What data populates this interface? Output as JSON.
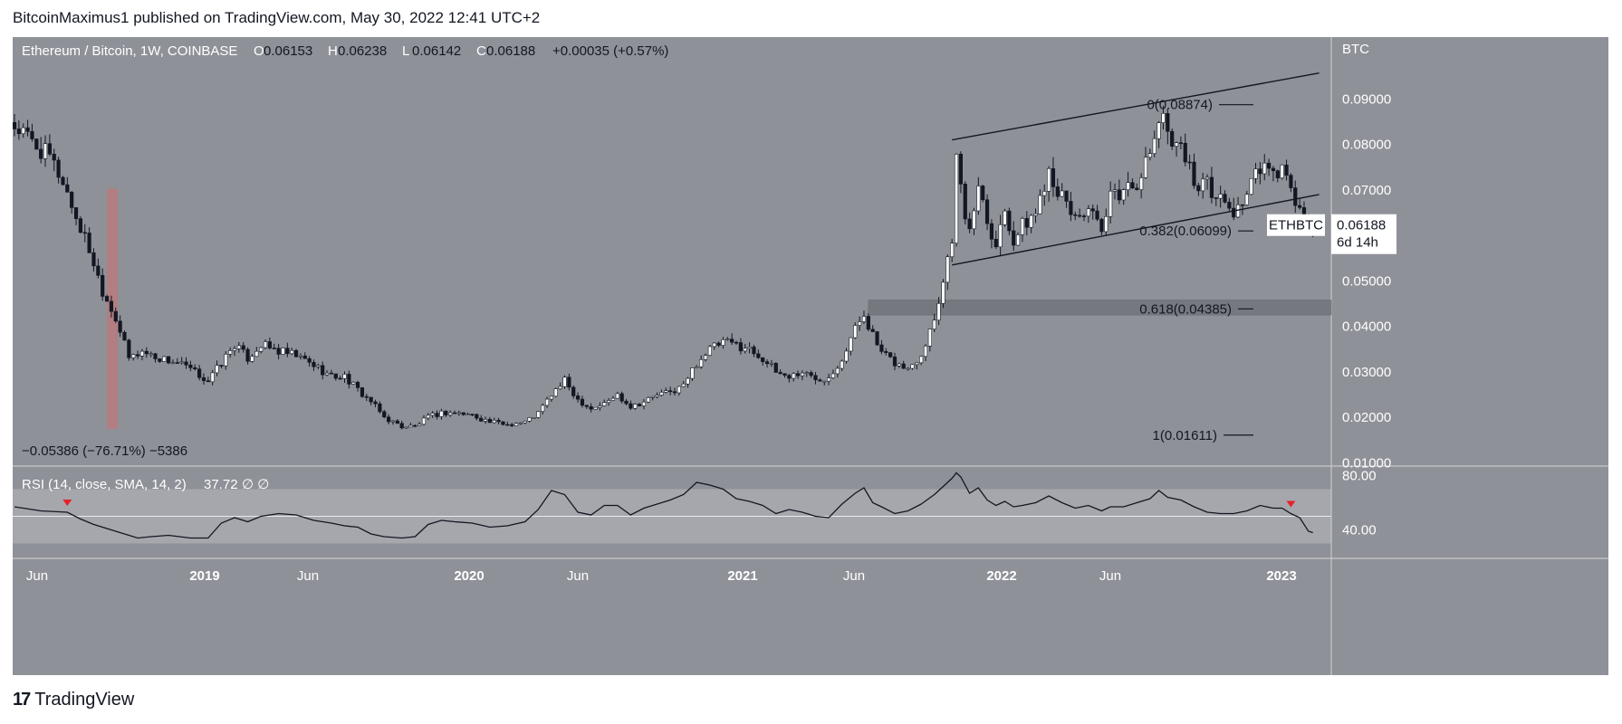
{
  "header": {
    "text": "BitcoinMaximus1 published on TradingView.com, May 30, 2022 12:41 UTC+2"
  },
  "footer": {
    "brand": "TradingView",
    "logo_glyph": "17"
  },
  "colors": {
    "background": "#8f9198",
    "bull": "#ffffff",
    "bear": "#131722",
    "border": "#c8c9cc",
    "rsi_band": "#a6a7ad",
    "zone": "#6e7077",
    "red_bar": "#b97a7d",
    "marker": "#e5202a"
  },
  "chart_data": {
    "type": "candlestick",
    "title": "Ethereum / Bitcoin, 1W, COINBASE",
    "ohlc": {
      "o_label": "O",
      "o": "0.06153",
      "h_label": "H",
      "h": "0.06238",
      "l_label": "L",
      "l": "0.06142",
      "c_label": "C",
      "c": "0.06188",
      "change": "+0.00035 (+0.57%)"
    },
    "y_axis": {
      "unit": "BTC",
      "ticks": [
        "0.09000",
        "0.08000",
        "0.07000",
        "0.06000",
        "0.05000",
        "0.04000",
        "0.03000",
        "0.02000",
        "0.01000"
      ],
      "range": [
        0.0093,
        0.1036
      ]
    },
    "x_axis": {
      "ticks": [
        "Jun",
        "2019",
        "Jun",
        "2020",
        "Jun",
        "2021",
        "Jun",
        "2022",
        "Jun",
        "2023"
      ]
    },
    "last_price": {
      "symbol": "ETHBTC",
      "value": "0.06188",
      "countdown": "6d 14h"
    },
    "fib_levels": [
      {
        "label": "0(0.08874)",
        "price": 0.08874
      },
      {
        "label": "0.382(0.06099)",
        "price": 0.06099
      },
      {
        "label": "0.618(0.04385)",
        "price": 0.04385
      },
      {
        "label": "1(0.01611)",
        "price": 0.01611
      }
    ],
    "support_zone": {
      "from": 0.0425,
      "to": 0.0458
    },
    "measure_label": "−0.05386 (−76.71%) −5386",
    "close_path": [
      [
        0,
        0.084
      ],
      [
        4,
        0.0805
      ],
      [
        8,
        0.077
      ],
      [
        11,
        0.072
      ],
      [
        14,
        0.064
      ],
      [
        17,
        0.057
      ],
      [
        20,
        0.048
      ],
      [
        23,
        0.042
      ],
      [
        26,
        0.033
      ],
      [
        29,
        0.0345
      ],
      [
        33,
        0.033
      ],
      [
        37,
        0.032
      ],
      [
        40,
        0.0305
      ],
      [
        44,
        0.028
      ],
      [
        47,
        0.032
      ],
      [
        50,
        0.036
      ],
      [
        53,
        0.033
      ],
      [
        56,
        0.036
      ],
      [
        60,
        0.0345
      ],
      [
        64,
        0.0335
      ],
      [
        68,
        0.0315
      ],
      [
        72,
        0.029
      ],
      [
        75,
        0.029
      ],
      [
        78,
        0.026
      ],
      [
        81,
        0.0235
      ],
      [
        84,
        0.02
      ],
      [
        88,
        0.018
      ],
      [
        91,
        0.018
      ],
      [
        94,
        0.02
      ],
      [
        97,
        0.021
      ],
      [
        100,
        0.021
      ],
      [
        104,
        0.0205
      ],
      [
        108,
        0.019
      ],
      [
        112,
        0.0185
      ],
      [
        116,
        0.019
      ],
      [
        119,
        0.021
      ],
      [
        122,
        0.025
      ],
      [
        125,
        0.028
      ],
      [
        128,
        0.024
      ],
      [
        131,
        0.022
      ],
      [
        134,
        0.023
      ],
      [
        137,
        0.025
      ],
      [
        140,
        0.0225
      ],
      [
        143,
        0.0235
      ],
      [
        146,
        0.025
      ],
      [
        149,
        0.0255
      ],
      [
        152,
        0.027
      ],
      [
        155,
        0.032
      ],
      [
        158,
        0.035
      ],
      [
        161,
        0.0365
      ],
      [
        164,
        0.036
      ],
      [
        167,
        0.035
      ],
      [
        170,
        0.033
      ],
      [
        173,
        0.03
      ],
      [
        176,
        0.029
      ],
      [
        179,
        0.03
      ],
      [
        182,
        0.0285
      ],
      [
        185,
        0.029
      ],
      [
        188,
        0.033
      ],
      [
        191,
        0.0395
      ],
      [
        193,
        0.043
      ],
      [
        195,
        0.038
      ],
      [
        197,
        0.034
      ],
      [
        200,
        0.032
      ],
      [
        203,
        0.0305
      ],
      [
        206,
        0.034
      ],
      [
        209,
        0.042
      ],
      [
        211,
        0.05
      ],
      [
        213,
        0.06
      ],
      [
        214,
        0.077
      ],
      [
        215,
        0.07
      ],
      [
        217,
        0.06
      ],
      [
        219,
        0.072
      ],
      [
        221,
        0.064
      ],
      [
        223,
        0.058
      ],
      [
        225,
        0.066
      ],
      [
        227,
        0.059
      ],
      [
        229,
        0.062
      ],
      [
        232,
        0.065
      ],
      [
        235,
        0.075
      ],
      [
        238,
        0.068
      ],
      [
        241,
        0.064
      ],
      [
        244,
        0.066
      ],
      [
        247,
        0.06
      ],
      [
        249,
        0.068
      ],
      [
        252,
        0.07
      ],
      [
        255,
        0.072
      ],
      [
        258,
        0.077
      ],
      [
        260,
        0.086
      ],
      [
        262,
        0.083
      ],
      [
        265,
        0.08
      ],
      [
        268,
        0.072
      ],
      [
        271,
        0.071
      ],
      [
        274,
        0.068
      ],
      [
        277,
        0.065
      ],
      [
        280,
        0.069
      ],
      [
        283,
        0.075
      ],
      [
        286,
        0.073
      ],
      [
        288,
        0.075
      ],
      [
        290,
        0.069
      ],
      [
        292,
        0.066
      ],
      [
        294,
        0.06
      ],
      [
        295,
        0.0619
      ]
    ],
    "rsi": {
      "label": "RSI (14, close, SMA, 14, 2)",
      "value": "37.72",
      "extra": "∅  ∅",
      "ticks": [
        "80.00",
        "40.00"
      ],
      "range": [
        19,
        87
      ],
      "band": [
        30,
        70
      ],
      "midline": 50,
      "path": [
        [
          0,
          57
        ],
        [
          6,
          54
        ],
        [
          12,
          53
        ],
        [
          15,
          48
        ],
        [
          18,
          44
        ],
        [
          22,
          40
        ],
        [
          25,
          37
        ],
        [
          28,
          34
        ],
        [
          31,
          35
        ],
        [
          35,
          36
        ],
        [
          40,
          34
        ],
        [
          44,
          34
        ],
        [
          47,
          45
        ],
        [
          50,
          49
        ],
        [
          53,
          46
        ],
        [
          56,
          50
        ],
        [
          60,
          52
        ],
        [
          64,
          51
        ],
        [
          68,
          47
        ],
        [
          72,
          45
        ],
        [
          75,
          43
        ],
        [
          78,
          42
        ],
        [
          81,
          37
        ],
        [
          84,
          35
        ],
        [
          88,
          34
        ],
        [
          91,
          35
        ],
        [
          94,
          44
        ],
        [
          97,
          47
        ],
        [
          100,
          46
        ],
        [
          104,
          45
        ],
        [
          108,
          42
        ],
        [
          112,
          43
        ],
        [
          116,
          46
        ],
        [
          119,
          55
        ],
        [
          122,
          69
        ],
        [
          125,
          66
        ],
        [
          128,
          53
        ],
        [
          131,
          51
        ],
        [
          134,
          58
        ],
        [
          137,
          58
        ],
        [
          140,
          51
        ],
        [
          143,
          56
        ],
        [
          146,
          59
        ],
        [
          149,
          62
        ],
        [
          152,
          66
        ],
        [
          155,
          75
        ],
        [
          158,
          73
        ],
        [
          161,
          70
        ],
        [
          164,
          63
        ],
        [
          167,
          61
        ],
        [
          170,
          58
        ],
        [
          173,
          52
        ],
        [
          176,
          55
        ],
        [
          179,
          53
        ],
        [
          182,
          50
        ],
        [
          185,
          49
        ],
        [
          188,
          59
        ],
        [
          191,
          67
        ],
        [
          193,
          71
        ],
        [
          195,
          60
        ],
        [
          197,
          57
        ],
        [
          200,
          52
        ],
        [
          203,
          54
        ],
        [
          206,
          59
        ],
        [
          209,
          66
        ],
        [
          211,
          72
        ],
        [
          213,
          78
        ],
        [
          214,
          82
        ],
        [
          215,
          79
        ],
        [
          217,
          67
        ],
        [
          219,
          71
        ],
        [
          221,
          62
        ],
        [
          223,
          58
        ],
        [
          225,
          61
        ],
        [
          227,
          57
        ],
        [
          229,
          58
        ],
        [
          232,
          60
        ],
        [
          235,
          65
        ],
        [
          238,
          60
        ],
        [
          241,
          56
        ],
        [
          244,
          58
        ],
        [
          247,
          54
        ],
        [
          249,
          57
        ],
        [
          252,
          57
        ],
        [
          255,
          60
        ],
        [
          258,
          63
        ],
        [
          260,
          69
        ],
        [
          262,
          64
        ],
        [
          265,
          62
        ],
        [
          268,
          57
        ],
        [
          271,
          53
        ],
        [
          274,
          52
        ],
        [
          277,
          52
        ],
        [
          280,
          54
        ],
        [
          283,
          58
        ],
        [
          286,
          56
        ],
        [
          288,
          56
        ],
        [
          290,
          52
        ],
        [
          292,
          49
        ],
        [
          294,
          39
        ],
        [
          295,
          38
        ]
      ],
      "markers": [
        12,
        290
      ]
    }
  }
}
